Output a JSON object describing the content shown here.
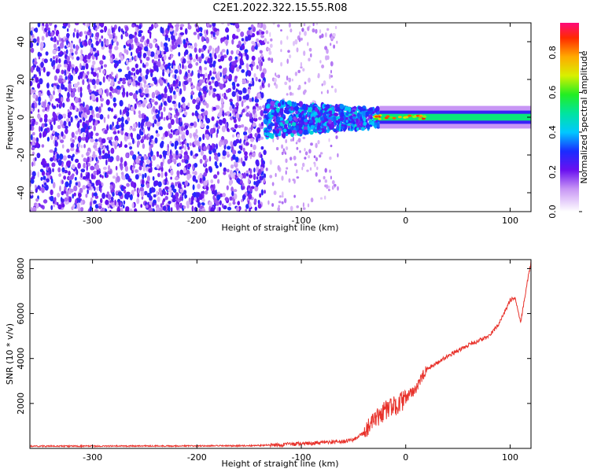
{
  "title": "C2E1.2022.322.15.55.R08",
  "colors": {
    "snr_line": "#e8322b",
    "frame": "#000000"
  },
  "chart_data": [
    {
      "type": "heatmap",
      "xlabel": "Height of straight line (km)",
      "ylabel": "Frequency (Hz)",
      "xlim": [
        -360,
        120
      ],
      "ylim": [
        -50,
        50
      ],
      "xticks": [
        -300,
        -200,
        -100,
        0,
        100
      ],
      "yticks": [
        -40,
        -20,
        0,
        20,
        40
      ],
      "colorbar": {
        "label": "Normalized spectral amplitude",
        "range": [
          0,
          0.95
        ],
        "ticks": [
          0.0,
          0.2,
          0.4,
          0.6,
          0.8
        ]
      },
      "regions": [
        {
          "x_from": -360,
          "x_to": -135,
          "description": "broadband noise, amplitude ~0.15",
          "level": 0.15
        },
        {
          "x_from": -135,
          "x_to": -25,
          "description": "signal emerging near 0 Hz",
          "level": 0.3
        },
        {
          "x_from": -25,
          "x_to": 120,
          "description": "narrow tone at 0 Hz",
          "level": 0.4
        }
      ]
    },
    {
      "type": "line",
      "xlabel": "Height of straight line (km)",
      "ylabel": "SNR (10 * v/v)",
      "xlim": [
        -360,
        120
      ],
      "ylim": [
        0,
        8400
      ],
      "xticks": [
        -300,
        -200,
        -100,
        0,
        100
      ],
      "yticks": [
        2000,
        4000,
        6000,
        8000
      ],
      "series": [
        {
          "x": [
            -360,
            -300,
            -250,
            -200,
            -150,
            -130,
            -100,
            -80,
            -60,
            -50,
            -40,
            -30,
            -20,
            -10,
            0,
            10,
            20,
            40,
            60,
            80,
            90,
            100,
            105,
            110,
            115,
            120
          ],
          "values": [
            100,
            100,
            110,
            110,
            120,
            150,
            200,
            250,
            300,
            400,
            700,
            1200,
            1700,
            1900,
            2200,
            2700,
            3500,
            4100,
            4600,
            5000,
            5600,
            6600,
            6700,
            5600,
            7000,
            8300
          ]
        }
      ]
    }
  ]
}
